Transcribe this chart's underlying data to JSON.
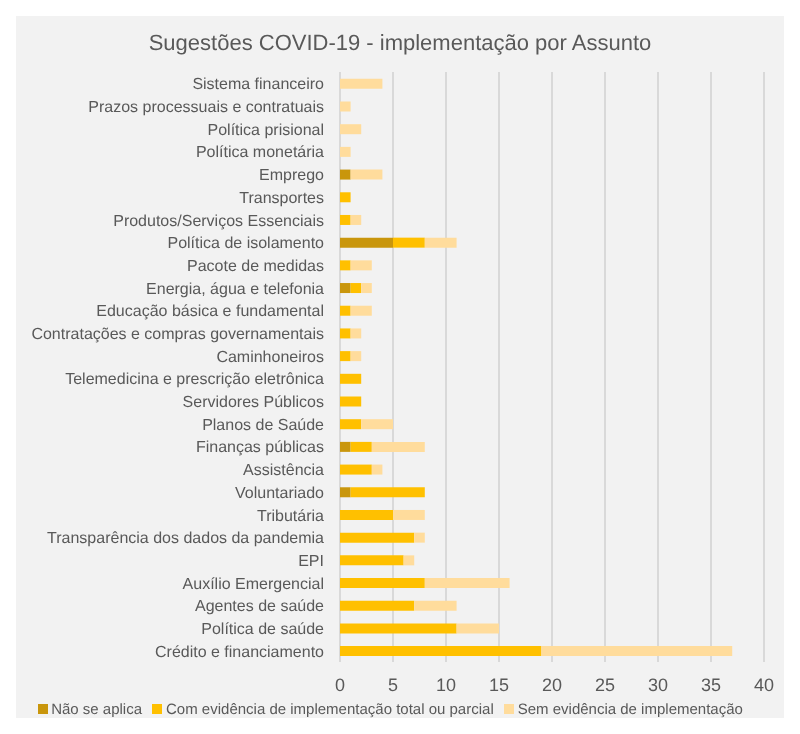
{
  "chart_data": {
    "type": "bar",
    "orientation": "horizontal",
    "stacked": true,
    "title": "Sugestões COVID-19 - implementação por Assunto",
    "categories": [
      "Sistema financeiro",
      "Prazos processuais e contratuais",
      "Política prisional",
      "Política monetária",
      "Emprego",
      "Transportes",
      "Produtos/Serviços Essenciais",
      "Política de isolamento",
      "Pacote de medidas",
      "Energia, água  e telefonia",
      "Educação básica e fundamental",
      "Contratações e compras governamentais",
      "Caminhoneiros",
      "Telemedicina e prescrição eletrônica",
      "Servidores Públicos",
      "Planos de Saúde",
      "Finanças públicas",
      "Assistência",
      "Voluntariado",
      "Tributária",
      "Transparência dos dados da pandemia",
      "EPI",
      "Auxílio Emergencial",
      "Agentes de saúde",
      "Política de saúde",
      "Crédito e financiamento"
    ],
    "series": [
      {
        "name": "Não se aplica",
        "color": "#c9960c",
        "values": [
          0,
          0,
          0,
          0,
          1,
          0,
          0,
          5,
          0,
          1,
          0,
          0,
          0,
          0,
          0,
          0,
          1,
          0,
          1,
          0,
          0,
          0,
          0,
          0,
          0,
          0
        ]
      },
      {
        "name": "Com evidência de implementação total ou parcial",
        "color": "#ffc000",
        "values": [
          0,
          0,
          0,
          0,
          0,
          1,
          1,
          3,
          1,
          1,
          1,
          1,
          1,
          2,
          2,
          2,
          2,
          3,
          7,
          5,
          7,
          6,
          8,
          7,
          11,
          19
        ]
      },
      {
        "name": "Sem evidência de implementação",
        "color": "#ffdc9c",
        "values": [
          4,
          1,
          2,
          1,
          3,
          0,
          1,
          3,
          2,
          1,
          2,
          1,
          1,
          0,
          0,
          3,
          5,
          1,
          0,
          3,
          1,
          1,
          8,
          4,
          4,
          18
        ]
      }
    ],
    "xlim": [
      0,
      40
    ],
    "xticks": [
      0,
      5,
      10,
      15,
      20,
      25,
      30,
      35,
      40
    ],
    "grid": "x",
    "legend": "bottom"
  }
}
